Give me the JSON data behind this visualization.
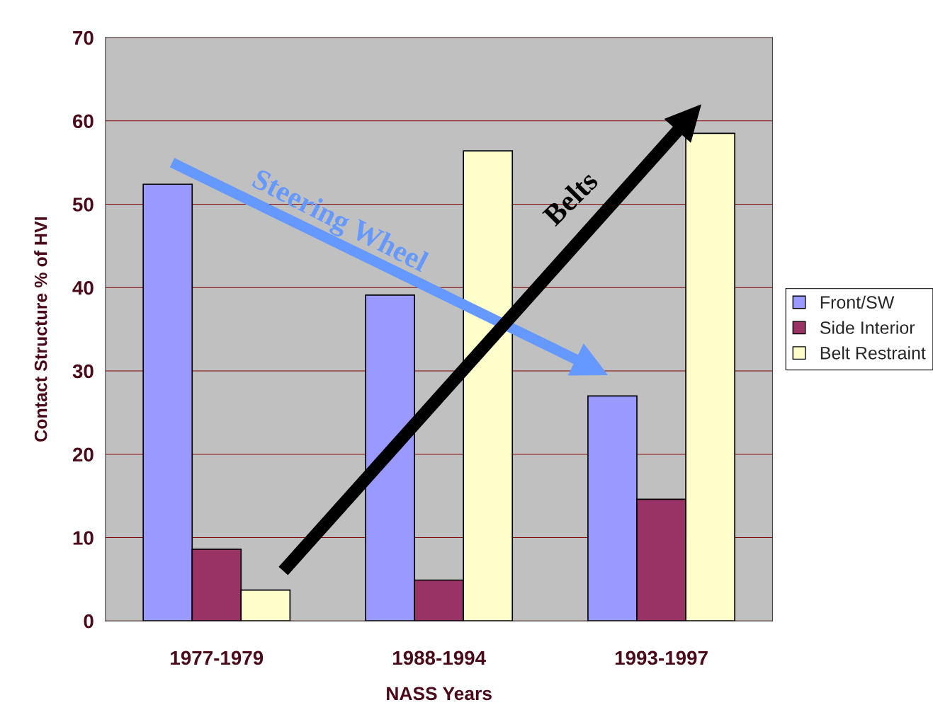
{
  "chart_data": {
    "type": "bar",
    "xlabel": "NASS Years",
    "ylabel": "Contact Structure % of HVI",
    "categories": [
      "1977-1979",
      "1988-1994",
      "1993-1997"
    ],
    "series": [
      {
        "name": "Front/SW",
        "color": "#9999ff",
        "values": [
          52.4,
          39.1,
          27.0
        ]
      },
      {
        "name": "Side Interior",
        "color": "#993366",
        "values": [
          8.6,
          4.9,
          14.6
        ]
      },
      {
        "name": "Belt Restraint",
        "color": "#ffffcc",
        "values": [
          3.7,
          56.4,
          58.5
        ]
      }
    ],
    "ylim": [
      0,
      70
    ],
    "yticks": [
      0,
      10,
      20,
      30,
      40,
      50,
      60,
      70
    ],
    "grid": "y",
    "legend": "right",
    "annotations": [
      "Steering Wheel",
      "Belts"
    ]
  }
}
